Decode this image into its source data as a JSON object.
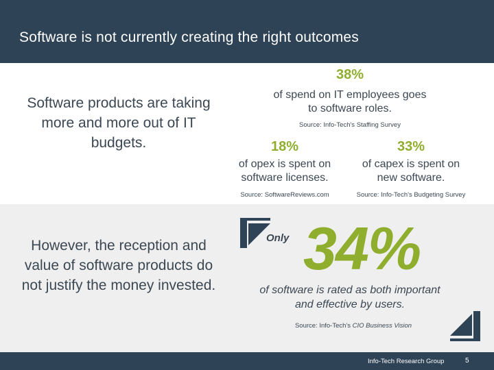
{
  "header": {
    "title": "Software is not currently creating the right outcomes"
  },
  "left": {
    "top_text": "Software products are taking more and more out of IT budgets.",
    "bottom_text": "However, the reception and value of software products do not justify the money invested."
  },
  "stats": [
    {
      "percent": "38%",
      "description": "of spend on IT employees goes to software roles.",
      "source": "Source: Info-Tech's Staffing Survey"
    },
    {
      "percent": "18%",
      "description": "of opex is spent on software licenses.",
      "source": "Source: SoftwareReviews.com"
    },
    {
      "percent": "33%",
      "description": "of capex is spent on new software.",
      "source": "Source: Info-Tech's Budgeting Survey"
    }
  ],
  "highlight": {
    "prefix": "Only",
    "percent": "34%",
    "description": "of software is rated as both important and effective by users.",
    "source_prefix": "Source: Info-Tech's ",
    "source_italic": "CIO Business Vision"
  },
  "footer": {
    "organization": "Info-Tech Research Group",
    "page": "5"
  },
  "colors": {
    "navy": "#2f4357",
    "accent_green": "#8fae2e",
    "text": "#3b4752",
    "band": "#efefef"
  }
}
